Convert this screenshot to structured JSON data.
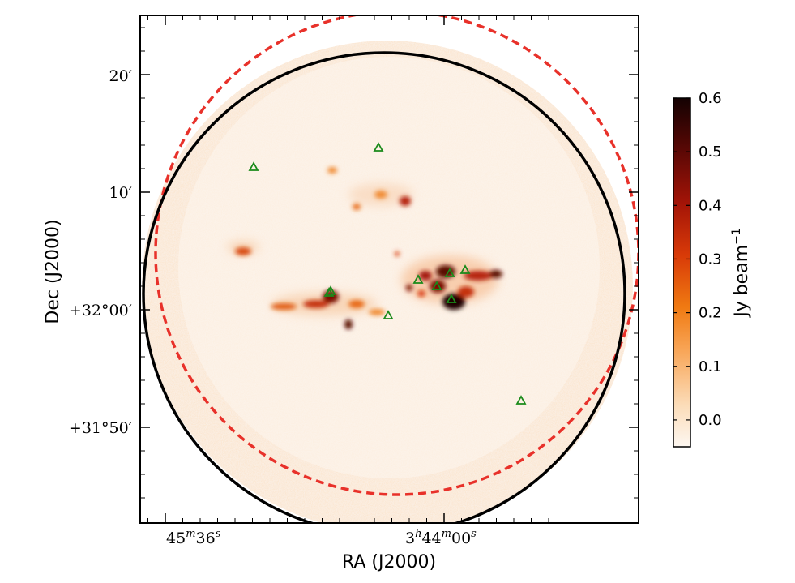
{
  "chart_data": {
    "type": "heatmap",
    "title": "",
    "xlabel": "RA (J2000)",
    "ylabel": "Dec (J2000)",
    "x_ticks": [
      {
        "label": "45",
        "sup1": "m",
        "num2": "36",
        "sup2": "s",
        "value_min": 45.6
      },
      {
        "label": "3",
        "sup1": "h",
        "num2": "44",
        "sup2": "m",
        "num3": "00",
        "sup3": "s",
        "value_min": 44.0
      }
    ],
    "y_ticks": [
      {
        "label": "20′",
        "value_arcmin": 20
      },
      {
        "label": "10′",
        "value_arcmin": 10
      },
      {
        "label": "+32°00′",
        "value_arcmin": 0
      },
      {
        "label": "+31°50′",
        "value_arcmin": -10
      }
    ],
    "colorbar": {
      "label": "Jy beam",
      "label_sup": "−1",
      "ticks": [
        0.6,
        0.5,
        0.4,
        0.3,
        0.2,
        0.1,
        0.0
      ],
      "tick_labels": [
        "0.6",
        "0.5",
        "0.4",
        "0.3",
        "0.2",
        "0.1",
        "0.0"
      ],
      "range": [
        -0.05,
        0.6
      ],
      "colormap": [
        "#fdf7f1",
        "#fbdcb8",
        "#f8a455",
        "#f07a12",
        "#d83a08",
        "#a31407",
        "#5a0805",
        "#140202"
      ]
    },
    "overlays": {
      "black_circle": {
        "stroke": "#000000",
        "style": "solid"
      },
      "red_circle": {
        "stroke": "#e8312a",
        "style": "dashed"
      }
    },
    "sources": {
      "marker": "triangle",
      "color": "#1a8a1a",
      "count": 11
    },
    "grid": false
  }
}
